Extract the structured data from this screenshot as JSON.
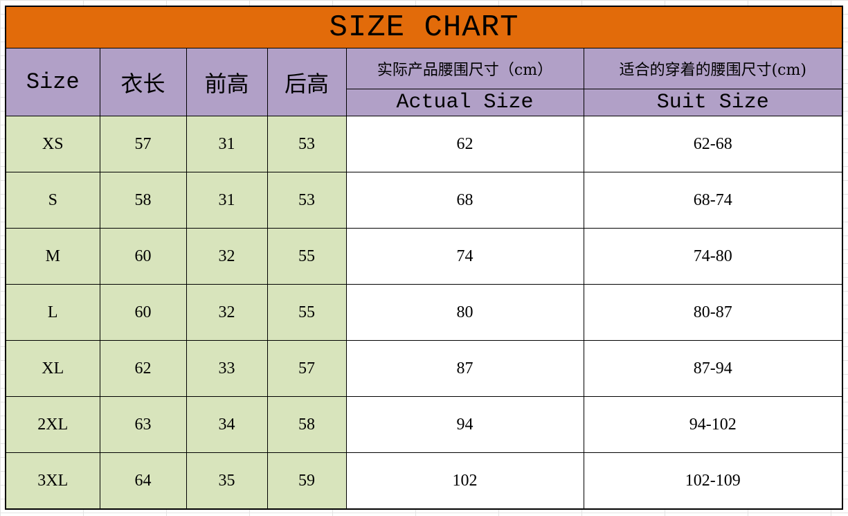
{
  "title": "SIZE CHART",
  "headers": {
    "size": "Size",
    "length": "衣长",
    "front_rise": "前高",
    "back_rise": "后高",
    "actual_zh": "实际产品腰围尺寸（cm）",
    "actual_en": "Actual Size",
    "suit_zh": "适合的穿着的腰围尺寸(cm)",
    "suit_en": "Suit Size"
  },
  "colors": {
    "title_bg": "#E26B0A",
    "header_bg": "#B1A0C7",
    "left_cols_bg": "#D8E4BC"
  },
  "rows": [
    [
      "XS",
      "57",
      "31",
      "53",
      "62",
      "62-68"
    ],
    [
      "S",
      "58",
      "31",
      "53",
      "68",
      "68-74"
    ],
    [
      "M",
      "60",
      "32",
      "55",
      "74",
      "74-80"
    ],
    [
      "L",
      "60",
      "32",
      "55",
      "80",
      "80-87"
    ],
    [
      "XL",
      "62",
      "33",
      "57",
      "87",
      "87-94"
    ],
    [
      "2XL",
      "63",
      "34",
      "58",
      "94",
      "94-102"
    ],
    [
      "3XL",
      "64",
      "35",
      "59",
      "102",
      "102-109"
    ]
  ]
}
